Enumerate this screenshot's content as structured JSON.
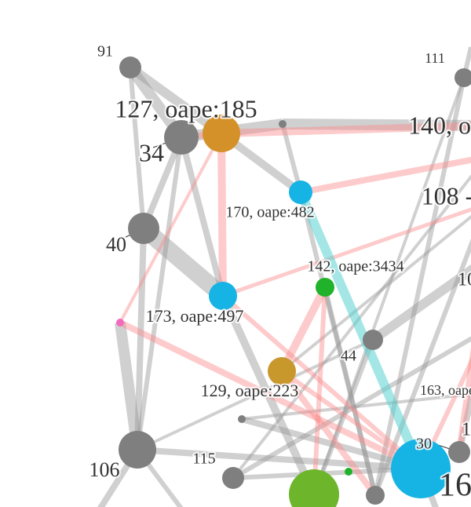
{
  "node_labels": [
    "91",
    "127, oape:185",
    "34",
    "140, o",
    "111",
    "170, oape:482",
    "108 -",
    "40",
    "142, oape:3434",
    "173, oape:497",
    "10",
    "44",
    "129, oape:223",
    "163, oape",
    "30",
    "1",
    "16",
    "106",
    "115"
  ]
}
